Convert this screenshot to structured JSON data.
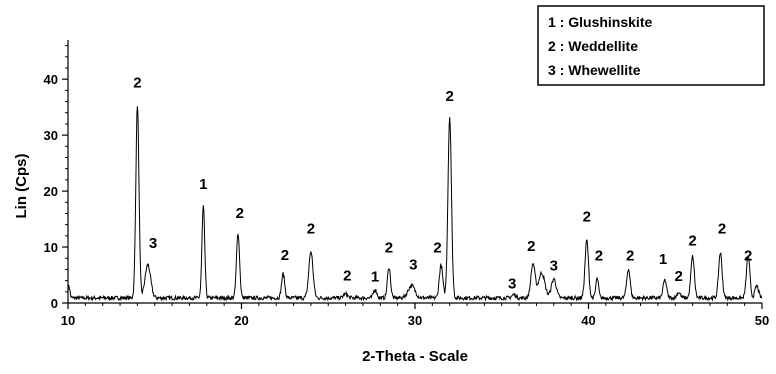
{
  "chart_data": {
    "type": "line",
    "title": "",
    "xlabel": "2-Theta - Scale",
    "ylabel": "Lin (Cps)",
    "xlim": [
      10,
      50
    ],
    "ylim": [
      0,
      47
    ],
    "x_ticks": [
      10,
      20,
      30,
      40,
      50
    ],
    "y_ticks": [
      0,
      10,
      20,
      30,
      40
    ],
    "grid": false,
    "legend_position": "top-right",
    "legend": [
      {
        "number": "1",
        "name": "Glushinskite"
      },
      {
        "number": "2",
        "name": "Weddellite"
      },
      {
        "number": "3",
        "name": "Whewellite"
      }
    ],
    "baseline": 0.9,
    "peaks": [
      {
        "x": 10.05,
        "height": 2.2,
        "width": 0.06
      },
      {
        "x": 14.0,
        "height": 34.5,
        "width": 0.09
      },
      {
        "x": 14.6,
        "height": 5.9,
        "width": 0.16
      },
      {
        "x": 17.8,
        "height": 16.3,
        "width": 0.08
      },
      {
        "x": 19.8,
        "height": 11.6,
        "width": 0.09
      },
      {
        "x": 22.4,
        "height": 4.3,
        "width": 0.09
      },
      {
        "x": 24.0,
        "height": 8.3,
        "width": 0.12
      },
      {
        "x": 26.0,
        "height": 0.7,
        "width": 0.12
      },
      {
        "x": 27.7,
        "height": 1.5,
        "width": 0.1
      },
      {
        "x": 28.5,
        "height": 5.5,
        "width": 0.09
      },
      {
        "x": 29.8,
        "height": 2.2,
        "width": 0.2
      },
      {
        "x": 31.5,
        "height": 5.9,
        "width": 0.1
      },
      {
        "x": 32.0,
        "height": 32.4,
        "width": 0.1
      },
      {
        "x": 35.7,
        "height": 0.6,
        "width": 0.12
      },
      {
        "x": 36.8,
        "height": 6.1,
        "width": 0.12
      },
      {
        "x": 37.3,
        "height": 4.5,
        "width": 0.18
      },
      {
        "x": 38.0,
        "height": 3.4,
        "width": 0.14
      },
      {
        "x": 39.9,
        "height": 10.3,
        "width": 0.1
      },
      {
        "x": 40.5,
        "height": 3.5,
        "width": 0.08
      },
      {
        "x": 42.3,
        "height": 5.2,
        "width": 0.1
      },
      {
        "x": 44.4,
        "height": 3.2,
        "width": 0.1
      },
      {
        "x": 45.2,
        "height": 1.0,
        "width": 0.1
      },
      {
        "x": 46.0,
        "height": 7.4,
        "width": 0.1
      },
      {
        "x": 47.6,
        "height": 8.1,
        "width": 0.1
      },
      {
        "x": 49.2,
        "height": 7.4,
        "width": 0.1
      },
      {
        "x": 49.7,
        "height": 2.2,
        "width": 0.1
      }
    ],
    "annotations": [
      {
        "label": "2",
        "x": 14.0,
        "y": 38.5
      },
      {
        "label": "3",
        "x": 14.9,
        "y": 9.8
      },
      {
        "label": "1",
        "x": 17.8,
        "y": 20.4
      },
      {
        "label": "2",
        "x": 19.9,
        "y": 15.2
      },
      {
        "label": "2",
        "x": 22.5,
        "y": 7.7
      },
      {
        "label": "2",
        "x": 24.0,
        "y": 12.4
      },
      {
        "label": "2",
        "x": 26.1,
        "y": 4.0
      },
      {
        "label": "1",
        "x": 27.7,
        "y": 3.8
      },
      {
        "label": "2",
        "x": 28.5,
        "y": 9.0
      },
      {
        "label": "3",
        "x": 29.9,
        "y": 6.0
      },
      {
        "label": "2",
        "x": 31.3,
        "y": 9.0
      },
      {
        "label": "2",
        "x": 32.0,
        "y": 36.1
      },
      {
        "label": "3",
        "x": 35.6,
        "y": 2.6
      },
      {
        "label": "2",
        "x": 36.7,
        "y": 9.3
      },
      {
        "label": "3",
        "x": 38.0,
        "y": 5.8
      },
      {
        "label": "2",
        "x": 39.9,
        "y": 14.6
      },
      {
        "label": "2",
        "x": 40.6,
        "y": 7.6
      },
      {
        "label": "2",
        "x": 42.4,
        "y": 7.6
      },
      {
        "label": "1",
        "x": 44.3,
        "y": 7.0
      },
      {
        "label": "2",
        "x": 45.2,
        "y": 3.9
      },
      {
        "label": "2",
        "x": 46.0,
        "y": 10.3
      },
      {
        "label": "2",
        "x": 47.7,
        "y": 12.4
      },
      {
        "label": "2",
        "x": 49.2,
        "y": 7.6
      }
    ]
  }
}
